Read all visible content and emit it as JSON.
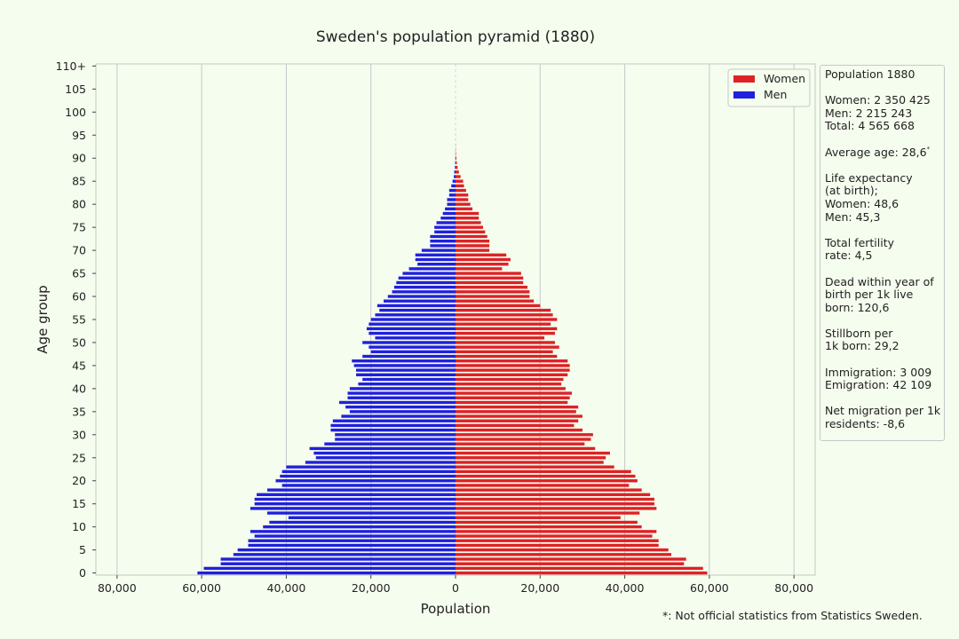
{
  "chart_data": {
    "type": "bar",
    "orientation": "horizontal",
    "title": "Sweden's population pyramid (1880)",
    "xlabel": "Population",
    "ylabel": "Age group",
    "xlim": [
      -85000,
      85000
    ],
    "x_ticks": [
      -80000,
      -60000,
      -40000,
      -20000,
      0,
      20000,
      40000,
      60000,
      80000
    ],
    "x_tick_labels": [
      "80,000",
      "60,000",
      "40,000",
      "20,000",
      "0",
      "20,000",
      "40,000",
      "60,000",
      "80,000"
    ],
    "y_tick_labels": [
      "0",
      "5",
      "10",
      "15",
      "20",
      "25",
      "30",
      "35",
      "40",
      "45",
      "50",
      "55",
      "60",
      "65",
      "70",
      "75",
      "80",
      "85",
      "90",
      "95",
      "100",
      "105",
      "110+"
    ],
    "grid": "vertical",
    "legend_position": "top-right",
    "categories_ages": [
      0,
      1,
      2,
      3,
      4,
      5,
      6,
      7,
      8,
      9,
      10,
      11,
      12,
      13,
      14,
      15,
      16,
      17,
      18,
      19,
      20,
      21,
      22,
      23,
      24,
      25,
      26,
      27,
      28,
      29,
      30,
      31,
      32,
      33,
      34,
      35,
      36,
      37,
      38,
      39,
      40,
      41,
      42,
      43,
      44,
      45,
      46,
      47,
      48,
      49,
      50,
      51,
      52,
      53,
      54,
      55,
      56,
      57,
      58,
      59,
      60,
      61,
      62,
      63,
      64,
      65,
      66,
      67,
      68,
      69,
      70,
      71,
      72,
      73,
      74,
      75,
      76,
      77,
      78,
      79,
      80,
      81,
      82,
      83,
      84,
      85,
      86,
      87,
      88,
      89,
      90,
      91,
      92,
      93,
      94,
      95,
      96,
      97,
      98,
      99,
      100,
      101,
      102,
      103,
      104,
      105,
      106,
      107,
      108,
      109,
      110
    ],
    "series": [
      {
        "name": "Women",
        "color": "#dd2226",
        "values": [
          59500,
          58500,
          54000,
          54500,
          51000,
          50300,
          48000,
          48000,
          46500,
          47500,
          44000,
          43000,
          39000,
          43500,
          47500,
          47000,
          47000,
          46000,
          44000,
          41000,
          43000,
          42500,
          41500,
          37500,
          35000,
          35500,
          36500,
          33000,
          30500,
          32000,
          32500,
          30000,
          28000,
          29000,
          30000,
          28500,
          29000,
          26500,
          27000,
          27500,
          26000,
          25000,
          25500,
          26500,
          27000,
          27000,
          26500,
          24000,
          23000,
          24500,
          23500,
          21000,
          23500,
          24000,
          22500,
          24000,
          23000,
          22500,
          20000,
          18500,
          17500,
          17500,
          17000,
          16000,
          16000,
          15500,
          11000,
          12500,
          13000,
          12000,
          8000,
          8000,
          8000,
          7500,
          7000,
          6500,
          6000,
          5500,
          5500,
          4000,
          3500,
          3000,
          3000,
          2500,
          2000,
          1800,
          1200,
          800,
          500,
          300,
          200,
          100,
          50,
          20,
          10,
          5,
          0,
          0,
          0,
          0,
          0,
          0,
          0,
          0,
          0,
          0,
          0,
          0,
          0,
          0,
          0
        ]
      },
      {
        "name": "Men",
        "color": "#2020dd",
        "values": [
          61000,
          59500,
          55500,
          55500,
          52500,
          51500,
          49000,
          49000,
          47500,
          48500,
          45500,
          44000,
          39500,
          44500,
          48500,
          47500,
          47500,
          47000,
          44500,
          41000,
          42500,
          41500,
          41000,
          40000,
          35500,
          33000,
          33500,
          34500,
          31000,
          28500,
          28500,
          29500,
          29500,
          29000,
          27000,
          25000,
          26000,
          27500,
          25500,
          25500,
          25000,
          23000,
          22000,
          23500,
          23500,
          24000,
          24500,
          22000,
          20000,
          20500,
          22000,
          19000,
          20500,
          21000,
          20500,
          20000,
          19000,
          18000,
          18500,
          17000,
          16000,
          15000,
          14500,
          14000,
          13500,
          12500,
          11000,
          9000,
          9500,
          9500,
          8000,
          6000,
          6000,
          6000,
          5000,
          5000,
          4500,
          3500,
          3000,
          2500,
          2000,
          2000,
          1500,
          1500,
          1000,
          700,
          400,
          300,
          150,
          80,
          40,
          20,
          10,
          5,
          0,
          0,
          0,
          0,
          0,
          0,
          0,
          0,
          0,
          0,
          0,
          0,
          0,
          0,
          0,
          0,
          0
        ]
      }
    ]
  },
  "info_box": {
    "title": "Population 1880",
    "women": "Women: 2 350 425",
    "men": "Men: 2 215 243",
    "total": "Total: 4 565 668",
    "average_age": "Average age: 28,6",
    "average_age_mark": "*",
    "life_expectancy_1": "Life expectancy",
    "life_expectancy_2": "(at birth);",
    "life_women": "Women: 48,6",
    "life_men": "Men: 45,3",
    "fertility_1": "Total fertility",
    "fertility_2": "rate: 4,5",
    "infant_1": "Dead within year of",
    "infant_2": "birth per 1k live",
    "infant_3": "born: 120,6",
    "stillborn_1": "Stillborn per",
    "stillborn_2": "1k born: 29,2",
    "immigration": "Immigration: 3 009",
    "emigration": "Emigration: 42 109",
    "net_1": "Net migration per 1k",
    "net_2": "residents: -8,6"
  },
  "footnote": "*: Not official statistics from Statistics Sweden."
}
